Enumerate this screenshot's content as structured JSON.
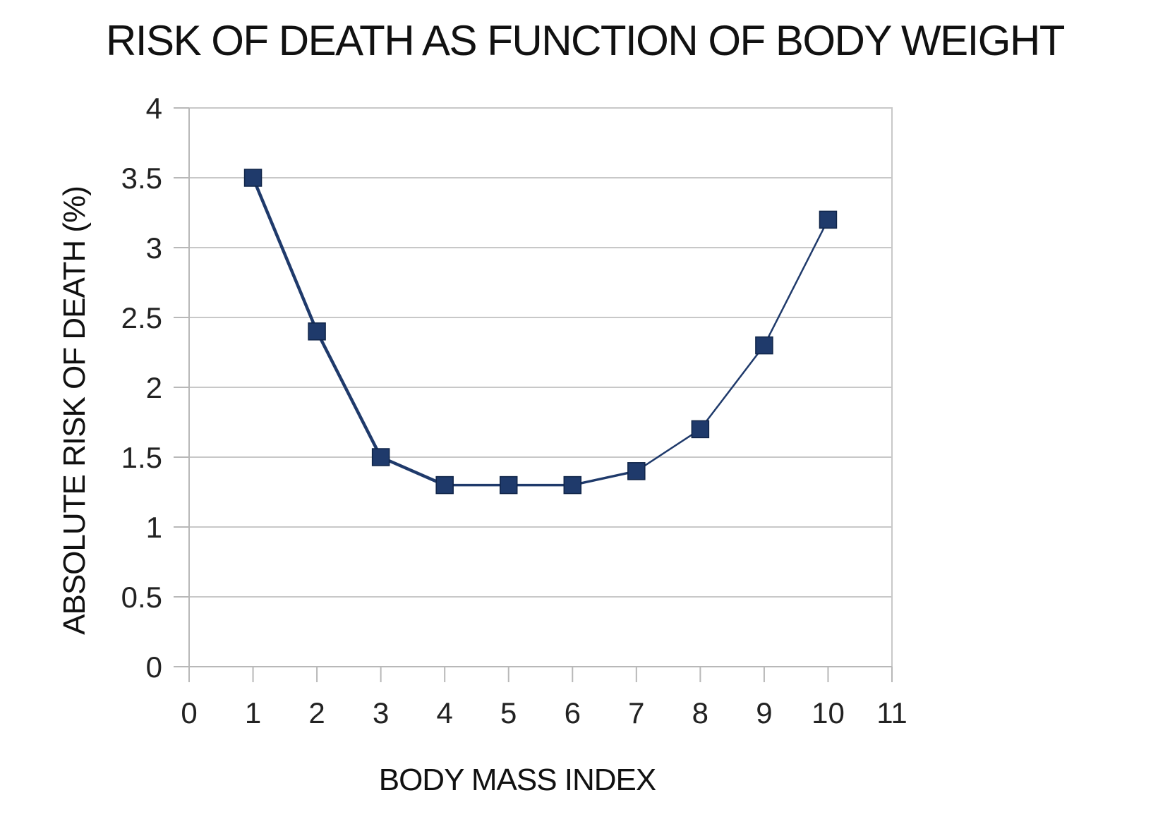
{
  "chart_data": {
    "type": "line",
    "title": "RISK OF DEATH AS FUNCTION OF BODY WEIGHT",
    "xlabel": "BODY MASS INDEX",
    "ylabel": "ABSOLUTE RISK OF DEATH (%)",
    "xlim": [
      0,
      11
    ],
    "ylim": [
      0,
      4
    ],
    "x_ticks": [
      "0",
      "1",
      "2",
      "3",
      "4",
      "5",
      "6",
      "7",
      "8",
      "9",
      "10",
      "11"
    ],
    "y_ticks": [
      "0",
      "0.5",
      "1",
      "1.5",
      "2",
      "2.5",
      "3",
      "3.5",
      "4"
    ],
    "grid": true,
    "legend": "none",
    "marker": "square",
    "series": [
      {
        "x": [
          1,
          2,
          3,
          4,
          5,
          6,
          7,
          8,
          9,
          10
        ],
        "y": [
          3.5,
          2.4,
          1.5,
          1.3,
          1.3,
          1.3,
          1.4,
          1.7,
          2.3,
          3.2
        ],
        "color": "#1f3a6b"
      }
    ]
  }
}
